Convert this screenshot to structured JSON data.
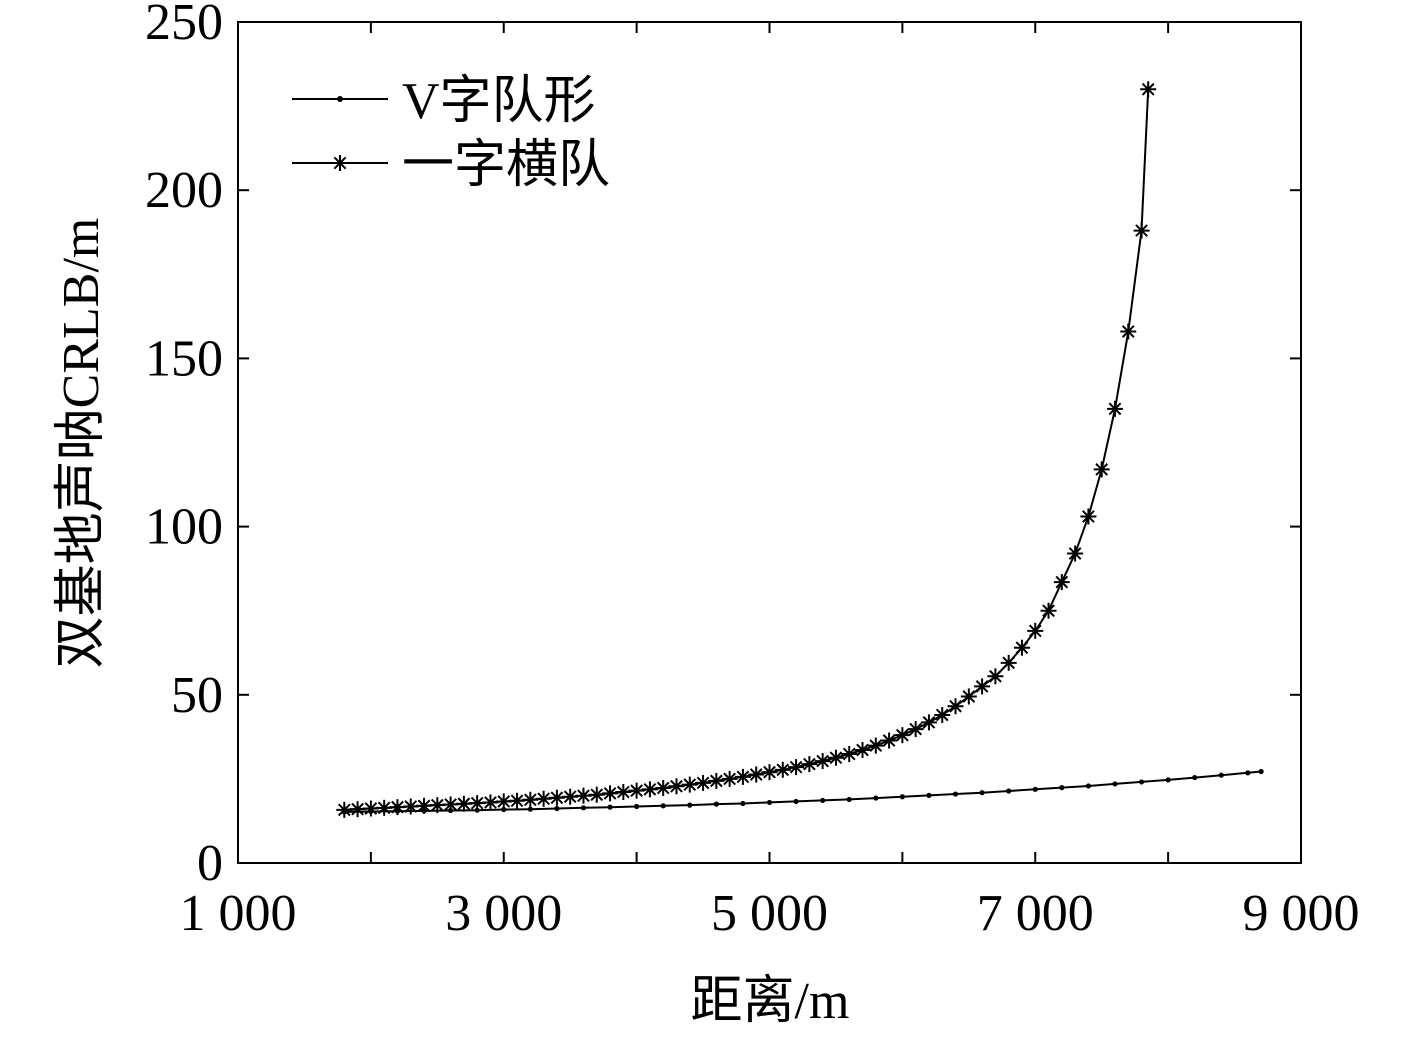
{
  "chart_data": {
    "type": "line",
    "title": "",
    "xlabel": "距离/m",
    "ylabel": "双基地声呐CRLB/m",
    "xlim": [
      1000,
      9000
    ],
    "ylim": [
      0,
      250
    ],
    "xticks": [
      1000,
      2000,
      3000,
      4000,
      5000,
      6000,
      7000,
      8000,
      9000
    ],
    "xtick_labels": [
      "1 000",
      "",
      "3 000",
      "",
      "5 000",
      "",
      "7 000",
      "",
      "9 000"
    ],
    "yticks": [
      0,
      50,
      100,
      150,
      200,
      250
    ],
    "ytick_labels": [
      "0",
      "50",
      "100",
      "150",
      "200",
      "250"
    ],
    "grid": false,
    "legend_position": "top-left",
    "series": [
      {
        "name": "V字队形",
        "marker": "dot",
        "color": "#000000",
        "x": [
          1800,
          2000,
          2200,
          2400,
          2600,
          2800,
          3000,
          3200,
          3400,
          3600,
          3800,
          4000,
          4200,
          4400,
          4600,
          4800,
          5000,
          5200,
          5400,
          5600,
          5800,
          6000,
          6200,
          6400,
          6600,
          6800,
          7000,
          7200,
          7400,
          7600,
          7800,
          8000,
          8200,
          8400,
          8600,
          8700
        ],
        "y": [
          15.2,
          15.3,
          15.4,
          15.5,
          15.6,
          15.7,
          15.9,
          16.0,
          16.2,
          16.4,
          16.6,
          16.8,
          17.0,
          17.2,
          17.5,
          17.7,
          18.0,
          18.3,
          18.6,
          18.9,
          19.3,
          19.7,
          20.1,
          20.5,
          20.9,
          21.4,
          21.9,
          22.4,
          22.9,
          23.5,
          24.1,
          24.7,
          25.4,
          26.1,
          26.8,
          27.2
        ]
      },
      {
        "name": "一字横队",
        "marker": "star",
        "color": "#000000",
        "x": [
          1800,
          1900,
          2000,
          2100,
          2200,
          2300,
          2400,
          2500,
          2600,
          2700,
          2800,
          2900,
          3000,
          3100,
          3200,
          3300,
          3400,
          3500,
          3600,
          3700,
          3800,
          3900,
          4000,
          4100,
          4200,
          4300,
          4400,
          4500,
          4600,
          4700,
          4800,
          4900,
          5000,
          5100,
          5200,
          5300,
          5400,
          5500,
          5600,
          5700,
          5800,
          5900,
          6000,
          6100,
          6200,
          6300,
          6400,
          6500,
          6600,
          6700,
          6800,
          6900,
          7000,
          7100,
          7200,
          7300,
          7400,
          7500,
          7600,
          7700,
          7800,
          7850
        ],
        "y": [
          15.8,
          16.0,
          16.2,
          16.4,
          16.6,
          16.8,
          17.0,
          17.2,
          17.4,
          17.6,
          17.8,
          18.0,
          18.3,
          18.5,
          18.8,
          19.1,
          19.4,
          19.7,
          20.0,
          20.3,
          20.7,
          21.1,
          21.5,
          21.9,
          22.3,
          22.8,
          23.3,
          23.8,
          24.4,
          25.0,
          25.6,
          26.3,
          27.0,
          27.7,
          28.5,
          29.4,
          30.3,
          31.3,
          32.4,
          33.6,
          34.9,
          36.4,
          38.0,
          39.8,
          41.8,
          44.0,
          46.6,
          49.5,
          52.5,
          55.5,
          59.5,
          64.0,
          69.0,
          75.0,
          83.5,
          92.0,
          103.0,
          117.0,
          135.0,
          158.0,
          188.0,
          230.0
        ]
      }
    ]
  }
}
